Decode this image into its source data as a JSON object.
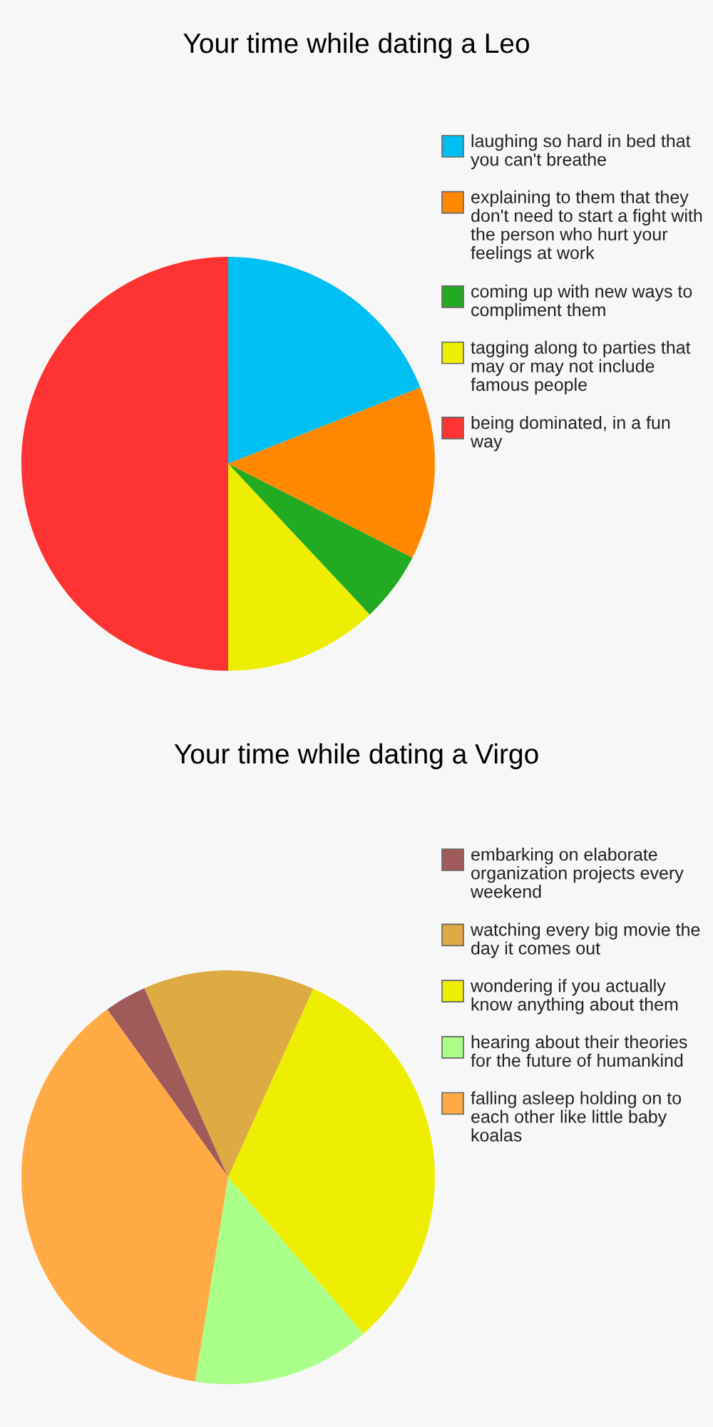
{
  "chart_data": [
    {
      "type": "pie",
      "title": "Your time while dating a Leo",
      "legend": "right",
      "categories": [
        "laughing so hard in bed that you can't breathe",
        "explaining to them that they don't need to start a fight with the person who hurt your feelings at work",
        "coming up with new ways to compliment them",
        "tagging along to parties that may or may not include famous people",
        "being dominated, in a fun way"
      ],
      "values": [
        19,
        13.5,
        5.5,
        12,
        50
      ],
      "colors": [
        "#00bff3",
        "#ff8800",
        "#22aa22",
        "#eeee00",
        "#ff3333"
      ]
    },
    {
      "type": "pie",
      "title": "Your time while dating a Virgo",
      "legend": "right",
      "categories": [
        "embarking on elaborate organization projects every weekend",
        "watching every big movie the day it comes out",
        "wondering if you actually know anything about them",
        "hearing about their theories for the future of humankind",
        "falling asleep holding on to each other like little baby koalas"
      ],
      "values": [
        3.3,
        13.4,
        31.9,
        13.9,
        37.5
      ],
      "colors": [
        "#a05a5a",
        "#ddaa44",
        "#eeee00",
        "#aaff88",
        "#ffaa44"
      ]
    }
  ]
}
